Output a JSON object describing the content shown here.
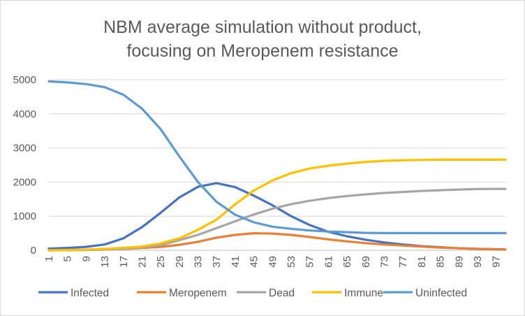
{
  "chart_data": {
    "type": "line",
    "title": "NBM average simulation without product,",
    "subtitle": "focusing on Meropenem resistance",
    "xlabel": "",
    "ylabel": "",
    "ylim": [
      0,
      5000
    ],
    "yticks": [
      0,
      1000,
      2000,
      3000,
      4000,
      5000
    ],
    "xlim": [
      1,
      99
    ],
    "xticks": [
      1,
      5,
      9,
      13,
      17,
      21,
      25,
      29,
      33,
      37,
      41,
      45,
      49,
      53,
      57,
      61,
      65,
      69,
      73,
      77,
      81,
      85,
      89,
      93,
      97
    ],
    "grid": true,
    "legend": "bottom",
    "x": [
      1,
      5,
      9,
      13,
      17,
      21,
      25,
      29,
      33,
      37,
      41,
      45,
      49,
      53,
      57,
      61,
      65,
      69,
      73,
      77,
      81,
      85,
      89,
      93,
      97,
      99
    ],
    "series": [
      {
        "name": "Infected",
        "color": "#4472C4",
        "values": [
          50,
          70,
          100,
          170,
          350,
          680,
          1100,
          1550,
          1860,
          1970,
          1850,
          1600,
          1320,
          1000,
          740,
          540,
          410,
          310,
          230,
          170,
          120,
          90,
          60,
          40,
          30,
          25
        ]
      },
      {
        "name": "Meropenem",
        "color": "#ED7D31",
        "values": [
          0,
          5,
          10,
          20,
          40,
          70,
          100,
          160,
          250,
          370,
          450,
          500,
          490,
          450,
          390,
          320,
          260,
          210,
          170,
          140,
          110,
          80,
          60,
          40,
          25,
          20
        ]
      },
      {
        "name": "Dead",
        "color": "#A5A5A5",
        "values": [
          0,
          5,
          10,
          20,
          40,
          90,
          150,
          300,
          450,
          650,
          850,
          1050,
          1220,
          1350,
          1450,
          1530,
          1590,
          1640,
          1680,
          1710,
          1740,
          1760,
          1780,
          1795,
          1800,
          1800
        ]
      },
      {
        "name": "Immune",
        "color": "#FFC000",
        "values": [
          0,
          10,
          20,
          40,
          70,
          110,
          200,
          350,
          600,
          900,
          1350,
          1750,
          2050,
          2260,
          2400,
          2480,
          2540,
          2590,
          2620,
          2640,
          2650,
          2655,
          2655,
          2655,
          2655,
          2655
        ]
      },
      {
        "name": "Uninfected",
        "color": "#5B9BD5",
        "values": [
          4950,
          4920,
          4870,
          4780,
          4560,
          4150,
          3550,
          2750,
          2000,
          1420,
          1040,
          820,
          690,
          630,
          580,
          550,
          530,
          510,
          505,
          505,
          505,
          505,
          505,
          505,
          505,
          505
        ]
      }
    ]
  }
}
